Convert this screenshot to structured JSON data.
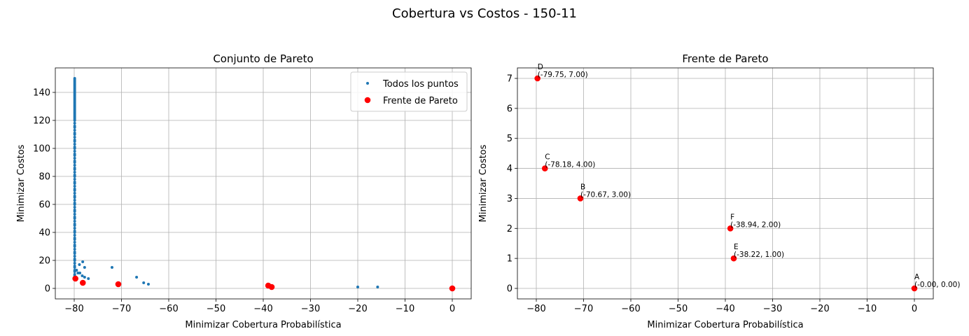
{
  "figure": {
    "suptitle": "Cobertura vs Costos - 150-11"
  },
  "colors": {
    "scatter": "#1f77b4",
    "pareto": "#ff0000",
    "grid": "#b0b0b0"
  },
  "chart_data": [
    {
      "type": "scatter",
      "title": "Conjunto de Pareto",
      "xlabel": "Minimizar Cobertura Probabilística",
      "ylabel": "Minimizar Costos",
      "xlim": [
        -84,
        4
      ],
      "ylim": [
        -7.5,
        157.5
      ],
      "xticks": [
        -80,
        -70,
        -60,
        -50,
        -40,
        -30,
        -20,
        -10,
        0
      ],
      "yticks": [
        0,
        20,
        40,
        60,
        80,
        100,
        120,
        140
      ],
      "grid": true,
      "legend": {
        "placement": "top-right",
        "entries": [
          "Todos los puntos",
          "Frente de Pareto"
        ]
      },
      "series": [
        {
          "name": "Todos los puntos",
          "marker": "small-dot",
          "points": [
            [
              -79.9,
              150
            ],
            [
              -79.9,
              149
            ],
            [
              -79.9,
              148
            ],
            [
              -79.9,
              147
            ],
            [
              -79.9,
              146
            ],
            [
              -79.9,
              145
            ],
            [
              -79.9,
              144
            ],
            [
              -79.9,
              143
            ],
            [
              -79.9,
              142
            ],
            [
              -79.9,
              141
            ],
            [
              -79.9,
              140
            ],
            [
              -79.9,
              139
            ],
            [
              -79.9,
              138
            ],
            [
              -79.9,
              137
            ],
            [
              -79.9,
              136
            ],
            [
              -79.9,
              135
            ],
            [
              -79.9,
              134
            ],
            [
              -79.9,
              133
            ],
            [
              -79.9,
              132
            ],
            [
              -79.9,
              131
            ],
            [
              -79.9,
              130
            ],
            [
              -79.9,
              129
            ],
            [
              -79.9,
              128
            ],
            [
              -79.9,
              127
            ],
            [
              -79.9,
              126
            ],
            [
              -79.9,
              125
            ],
            [
              -79.9,
              124
            ],
            [
              -79.9,
              123
            ],
            [
              -79.9,
              122
            ],
            [
              -79.9,
              121
            ],
            [
              -79.9,
              120
            ],
            [
              -79.9,
              118
            ],
            [
              -79.9,
              116
            ],
            [
              -79.9,
              115
            ],
            [
              -79.9,
              113
            ],
            [
              -79.9,
              111
            ],
            [
              -79.9,
              110
            ],
            [
              -79.9,
              108
            ],
            [
              -79.9,
              106
            ],
            [
              -79.9,
              105
            ],
            [
              -79.9,
              103
            ],
            [
              -79.9,
              101
            ],
            [
              -79.9,
              100
            ],
            [
              -79.9,
              98
            ],
            [
              -79.9,
              96
            ],
            [
              -79.9,
              95
            ],
            [
              -79.9,
              93
            ],
            [
              -79.9,
              91
            ],
            [
              -79.9,
              90
            ],
            [
              -79.9,
              88
            ],
            [
              -79.9,
              86
            ],
            [
              -79.9,
              85
            ],
            [
              -79.9,
              83
            ],
            [
              -79.9,
              81
            ],
            [
              -79.9,
              80
            ],
            [
              -79.9,
              78
            ],
            [
              -79.9,
              76
            ],
            [
              -79.9,
              75
            ],
            [
              -79.9,
              73
            ],
            [
              -79.9,
              71
            ],
            [
              -79.9,
              70
            ],
            [
              -79.9,
              68
            ],
            [
              -79.9,
              66
            ],
            [
              -79.9,
              65
            ],
            [
              -79.9,
              63
            ],
            [
              -79.9,
              61
            ],
            [
              -79.9,
              60
            ],
            [
              -79.9,
              58
            ],
            [
              -79.9,
              56
            ],
            [
              -79.9,
              55
            ],
            [
              -79.9,
              53
            ],
            [
              -79.9,
              51
            ],
            [
              -79.9,
              50
            ],
            [
              -79.9,
              48
            ],
            [
              -79.9,
              46
            ],
            [
              -79.9,
              45
            ],
            [
              -79.9,
              43
            ],
            [
              -79.9,
              41
            ],
            [
              -79.9,
              40
            ],
            [
              -79.9,
              38
            ],
            [
              -79.9,
              36
            ],
            [
              -79.9,
              35
            ],
            [
              -79.9,
              33
            ],
            [
              -79.9,
              31
            ],
            [
              -79.9,
              30
            ],
            [
              -79.9,
              28
            ],
            [
              -79.9,
              26
            ],
            [
              -79.9,
              25
            ],
            [
              -79.9,
              23
            ],
            [
              -79.9,
              21
            ],
            [
              -79.9,
              20
            ],
            [
              -79.9,
              18
            ],
            [
              -79.9,
              16
            ],
            [
              -79.9,
              15
            ],
            [
              -79.9,
              13
            ],
            [
              -79.9,
              12
            ],
            [
              -79.9,
              10
            ],
            [
              -79.9,
              9
            ],
            [
              -79.9,
              8
            ],
            [
              -79.5,
              13
            ],
            [
              -79.2,
              11
            ],
            [
              -78.9,
              17
            ],
            [
              -78.8,
              11
            ],
            [
              -78.3,
              9
            ],
            [
              -78.2,
              19
            ],
            [
              -77.8,
              8
            ],
            [
              -77.8,
              15
            ],
            [
              -77.0,
              7
            ],
            [
              -72.0,
              15
            ],
            [
              -66.8,
              8
            ],
            [
              -65.3,
              4
            ],
            [
              -64.3,
              3
            ],
            [
              -20.0,
              1
            ],
            [
              -15.8,
              1
            ]
          ]
        },
        {
          "name": "Frente de Pareto",
          "marker": "dot",
          "points": [
            [
              -79.75,
              7
            ],
            [
              -78.18,
              4
            ],
            [
              -70.67,
              3
            ],
            [
              -38.94,
              2
            ],
            [
              -38.22,
              1
            ],
            [
              0,
              0
            ]
          ]
        }
      ]
    },
    {
      "type": "scatter",
      "title": "Frente de Pareto",
      "xlabel": "Minimizar Cobertura Probabilística",
      "ylabel": "Minimizar Costos",
      "xlim": [
        -84,
        4
      ],
      "ylim": [
        -0.35,
        7.35
      ],
      "xticks": [
        -80,
        -70,
        -60,
        -50,
        -40,
        -30,
        -20,
        -10,
        0
      ],
      "yticks": [
        0,
        1,
        2,
        3,
        4,
        5,
        6,
        7
      ],
      "grid": true,
      "series": [
        {
          "marker": "dot",
          "points": [
            {
              "x": -79.75,
              "y": 7,
              "letter": "D",
              "label": "(-79.75, 7.00)"
            },
            {
              "x": -78.18,
              "y": 4,
              "letter": "C",
              "label": "(-78.18, 4.00)"
            },
            {
              "x": -70.67,
              "y": 3,
              "letter": "B",
              "label": "(-70.67, 3.00)"
            },
            {
              "x": -38.94,
              "y": 2,
              "letter": "F",
              "label": "(-38.94, 2.00)"
            },
            {
              "x": -38.22,
              "y": 1,
              "letter": "E",
              "label": "(-38.22, 1.00)"
            },
            {
              "x": 0,
              "y": 0,
              "letter": "A",
              "label": "(-0.00, 0.00)"
            }
          ]
        }
      ]
    }
  ]
}
